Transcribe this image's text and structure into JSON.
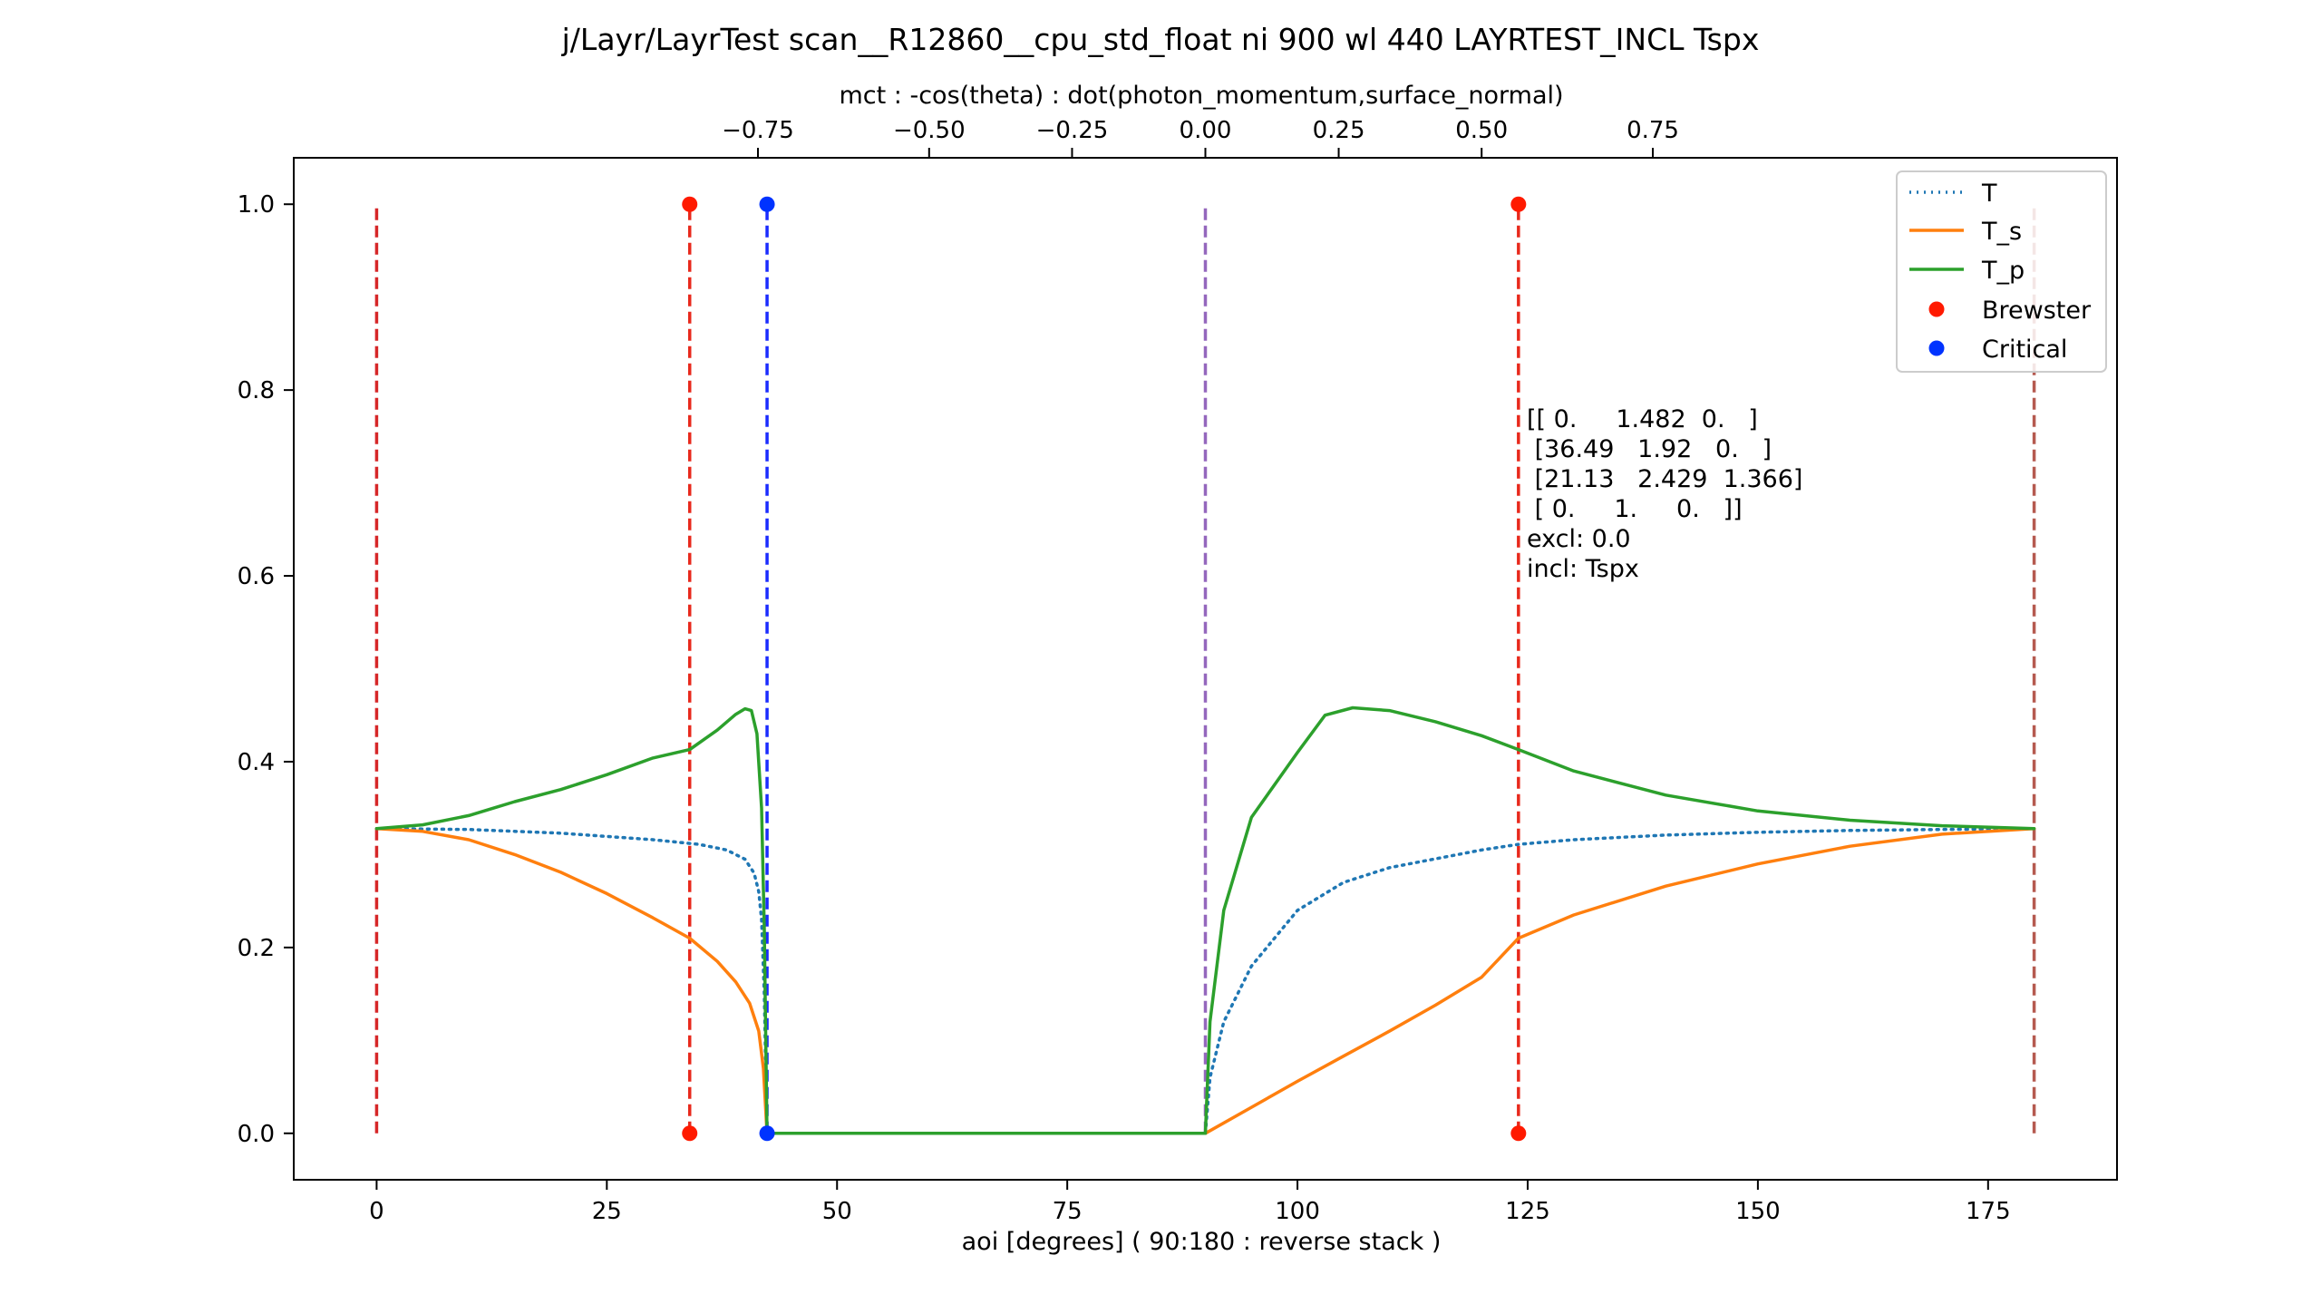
{
  "chart_data": {
    "type": "line",
    "title": "j/Layr/LayrTest scan__R12860__cpu_std_float ni 900 wl 440 LAYRTEST_INCL Tspx",
    "xlabel": "aoi [degrees] ( 90:180 : reverse stack )",
    "x2label": "mct : -cos(theta) : dot(photon_momentum,surface_normal)",
    "xlim": [
      -9,
      189
    ],
    "ylim": [
      -0.05,
      1.05
    ],
    "grid": false,
    "legend_position": "top-right",
    "x_ticks": [
      0,
      25,
      50,
      75,
      100,
      125,
      150,
      175
    ],
    "x_tick_labels": [
      "0",
      "25",
      "50",
      "75",
      "100",
      "125",
      "150",
      "175"
    ],
    "y_ticks": [
      0.0,
      0.2,
      0.4,
      0.6,
      0.8,
      1.0
    ],
    "y_tick_labels": [
      "0.0",
      "0.2",
      "0.4",
      "0.6",
      "0.8",
      "1.0"
    ],
    "x2_ticks": [
      -0.75,
      -0.5,
      -0.25,
      0.0,
      0.25,
      0.5,
      0.75
    ],
    "x2_tick_labels": [
      "−0.75",
      "−0.50",
      "−0.25",
      "0.00",
      "0.25",
      "0.50",
      "0.75"
    ],
    "series": [
      {
        "name": "T",
        "color": "#1f77b4",
        "style": "dotted",
        "points": [
          [
            0,
            0.328
          ],
          [
            10,
            0.327
          ],
          [
            20,
            0.323
          ],
          [
            30,
            0.316
          ],
          [
            35,
            0.311
          ],
          [
            38,
            0.305
          ],
          [
            40,
            0.295
          ],
          [
            41,
            0.28
          ],
          [
            41.5,
            0.26
          ],
          [
            41.8,
            0.23
          ],
          [
            42.1,
            0.15
          ],
          [
            42.4,
            0.0
          ],
          [
            90,
            0.0
          ],
          [
            90.5,
            0.06
          ],
          [
            92,
            0.12
          ],
          [
            95,
            0.18
          ],
          [
            100,
            0.24
          ],
          [
            105,
            0.27
          ],
          [
            110,
            0.286
          ],
          [
            120,
            0.305
          ],
          [
            124,
            0.311
          ],
          [
            130,
            0.316
          ],
          [
            140,
            0.321
          ],
          [
            150,
            0.324
          ],
          [
            160,
            0.326
          ],
          [
            170,
            0.327
          ],
          [
            180,
            0.328
          ]
        ]
      },
      {
        "name": "T_s",
        "color": "#ff7f0e",
        "style": "solid",
        "points": [
          [
            0,
            0.328
          ],
          [
            5,
            0.325
          ],
          [
            10,
            0.316
          ],
          [
            15,
            0.3
          ],
          [
            20,
            0.281
          ],
          [
            25,
            0.258
          ],
          [
            30,
            0.232
          ],
          [
            34,
            0.21
          ],
          [
            37,
            0.185
          ],
          [
            39,
            0.163
          ],
          [
            40.5,
            0.14
          ],
          [
            41.5,
            0.11
          ],
          [
            42,
            0.07
          ],
          [
            42.4,
            0.0
          ],
          [
            90,
            0.0
          ],
          [
            95,
            0.028
          ],
          [
            100,
            0.056
          ],
          [
            105,
            0.083
          ],
          [
            110,
            0.11
          ],
          [
            115,
            0.138
          ],
          [
            120,
            0.168
          ],
          [
            124,
            0.21
          ],
          [
            130,
            0.235
          ],
          [
            140,
            0.266
          ],
          [
            150,
            0.29
          ],
          [
            160,
            0.309
          ],
          [
            170,
            0.322
          ],
          [
            180,
            0.328
          ]
        ]
      },
      {
        "name": "T_p",
        "color": "#2ca02c",
        "style": "solid",
        "points": [
          [
            0,
            0.328
          ],
          [
            5,
            0.332
          ],
          [
            10,
            0.342
          ],
          [
            15,
            0.357
          ],
          [
            20,
            0.37
          ],
          [
            25,
            0.386
          ],
          [
            30,
            0.404
          ],
          [
            34,
            0.413
          ],
          [
            37,
            0.434
          ],
          [
            39,
            0.451
          ],
          [
            40,
            0.457
          ],
          [
            40.7,
            0.455
          ],
          [
            41.3,
            0.43
          ],
          [
            41.8,
            0.35
          ],
          [
            42.1,
            0.22
          ],
          [
            42.4,
            0.0
          ],
          [
            90,
            0.0
          ],
          [
            90.5,
            0.12
          ],
          [
            92,
            0.24
          ],
          [
            95,
            0.34
          ],
          [
            100,
            0.41
          ],
          [
            103,
            0.45
          ],
          [
            106,
            0.458
          ],
          [
            110,
            0.455
          ],
          [
            115,
            0.443
          ],
          [
            120,
            0.428
          ],
          [
            124,
            0.413
          ],
          [
            130,
            0.39
          ],
          [
            140,
            0.364
          ],
          [
            150,
            0.347
          ],
          [
            160,
            0.337
          ],
          [
            170,
            0.331
          ],
          [
            180,
            0.328
          ]
        ]
      }
    ],
    "brewster": {
      "name": "Brewster",
      "color": "#ff1a00",
      "points": [
        [
          34.0,
          1.0
        ],
        [
          34.0,
          0.0
        ],
        [
          124.0,
          1.0
        ],
        [
          124.0,
          0.0
        ]
      ]
    },
    "critical": {
      "name": "Critical",
      "color": "#0033ff",
      "points": [
        [
          42.4,
          1.0
        ],
        [
          42.4,
          0.0
        ]
      ]
    },
    "vlines": [
      {
        "x": 0,
        "color": "#d62728",
        "y_from": 0.0,
        "y_to": 1.0
      },
      {
        "x": 34.0,
        "color": "#e8291c",
        "y_from": 0.0,
        "y_to": 1.0
      },
      {
        "x": 42.4,
        "color": "#1a2bff",
        "y_from": 0.0,
        "y_to": 1.0
      },
      {
        "x": 90,
        "color": "#9467bd",
        "y_from": 0.0,
        "y_to": 1.0
      },
      {
        "x": 124.0,
        "color": "#e8291c",
        "y_from": 0.0,
        "y_to": 1.0
      },
      {
        "x": 180,
        "color": "#b55a50",
        "y_from": 0.0,
        "y_to": 1.0
      }
    ],
    "annotation": {
      "lines": [
        "[[ 0.     1.482  0.   ]",
        " [36.49   1.92   0.   ]",
        " [21.13   2.429  1.366]",
        " [ 0.     1.     0.   ]]",
        "excl: 0.0",
        "incl: Tspx"
      ]
    }
  }
}
